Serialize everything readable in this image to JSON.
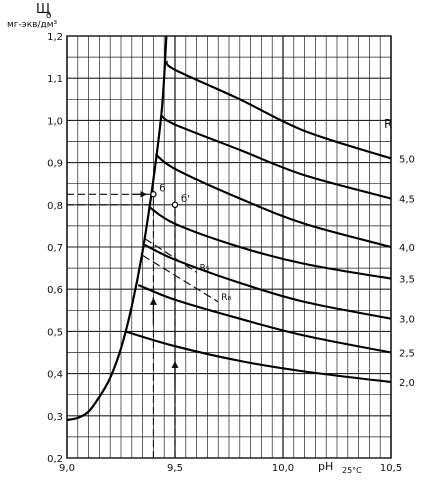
{
  "chart_data": {
    "type": "line",
    "ylabel_symbol": "Щ",
    "ylabel_subscript": "о",
    "ylabel_unit": "мг-экв/дм³",
    "xlabel_main": "pH",
    "xlabel_subscript": "25°C",
    "xlim": [
      9.0,
      10.5
    ],
    "ylim": [
      0.2,
      1.2
    ],
    "x_ticks": [
      "9,0",
      "9,5",
      "10,0",
      "10,5"
    ],
    "y_ticks": [
      "0,2",
      "0,3",
      "0,4",
      "0,5",
      "0,6",
      "0,7",
      "0,8",
      "0,9",
      "1,0",
      "1,1",
      "1,2"
    ],
    "grid": true,
    "right_axis_label": "R",
    "series": [
      {
        "name": "2,0",
        "x": [
          9.27,
          9.5,
          9.8,
          10.1,
          10.5
        ],
        "y": [
          0.5,
          0.465,
          0.43,
          0.405,
          0.38
        ]
      },
      {
        "name": "2,5",
        "x": [
          9.33,
          9.5,
          9.8,
          10.1,
          10.5
        ],
        "y": [
          0.61,
          0.575,
          0.53,
          0.49,
          0.45
        ]
      },
      {
        "name": "3,0",
        "x": [
          9.36,
          9.5,
          9.8,
          10.1,
          10.5
        ],
        "y": [
          0.705,
          0.67,
          0.615,
          0.57,
          0.53
        ]
      },
      {
        "name": "3,5",
        "x": [
          9.38,
          9.5,
          9.8,
          10.1,
          10.5
        ],
        "y": [
          0.795,
          0.755,
          0.7,
          0.66,
          0.625
        ]
      },
      {
        "name": "4,0",
        "x": [
          9.41,
          9.5,
          9.8,
          10.1,
          10.5
        ],
        "y": [
          0.92,
          0.885,
          0.815,
          0.755,
          0.7
        ]
      },
      {
        "name": "4,5",
        "x": [
          9.44,
          9.5,
          9.8,
          10.1,
          10.5
        ],
        "y": [
          1.01,
          0.99,
          0.93,
          0.87,
          0.815
        ]
      },
      {
        "name": "5,0",
        "x": [
          9.46,
          9.5,
          9.8,
          10.1,
          10.5
        ],
        "y": [
          1.14,
          1.12,
          1.05,
          0.975,
          0.91
        ]
      }
    ],
    "envelope": {
      "x": [
        9.0,
        9.05,
        9.1,
        9.15,
        9.2,
        9.25,
        9.3,
        9.35,
        9.4,
        9.44,
        9.46
      ],
      "y": [
        0.29,
        0.295,
        0.31,
        0.345,
        0.39,
        0.46,
        0.56,
        0.69,
        0.86,
        1.03,
        1.2
      ]
    },
    "dashed_lines": [
      {
        "label": "R₅",
        "x": [
          9.36,
          9.6
        ],
        "y": [
          0.72,
          0.64
        ]
      },
      {
        "label": "R₈",
        "x": [
          9.35,
          9.7
        ],
        "y": [
          0.68,
          0.57
        ]
      }
    ],
    "guides": {
      "dashed_horizontal": [
        {
          "x": [
            9.0,
            9.4
          ],
          "y": [
            0.825,
            0.825
          ]
        },
        {
          "x": [
            9.0,
            9.4
          ],
          "y": [
            0.8,
            0.8
          ]
        }
      ],
      "dashed_vertical": [
        {
          "x": [
            9.4,
            9.4
          ],
          "y": [
            0.2,
            0.825
          ]
        },
        {
          "x": [
            9.5,
            9.5
          ],
          "y": [
            0.2,
            0.8
          ]
        }
      ]
    },
    "points": [
      {
        "label": "б",
        "x": 9.4,
        "y": 0.825
      },
      {
        "label": "б'",
        "x": 9.5,
        "y": 0.8
      }
    ],
    "arrows": [
      {
        "x": 9.4,
        "y1": 0.52,
        "y2": 0.58
      },
      {
        "x": 9.5,
        "y1": 0.37,
        "y2": 0.43
      }
    ]
  }
}
